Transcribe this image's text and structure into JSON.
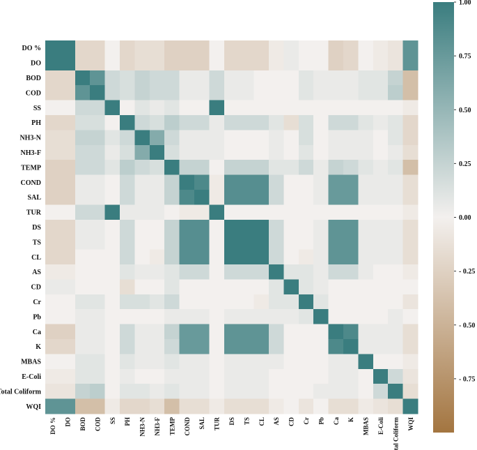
{
  "chart_data": {
    "type": "heatmap",
    "title": "",
    "xlabel": "",
    "ylabel": "",
    "x_labels": [
      "DO %",
      "DO",
      "BOD",
      "COD",
      "SS",
      "PH",
      "NH3-N",
      "NH3-F",
      "TEMP",
      "COND",
      "SAL",
      "TUR",
      "DS",
      "TS",
      "CL",
      "AS",
      "CD",
      "Cr",
      "Pb",
      "Ca",
      "K",
      "MBAS",
      "E-Coli",
      "Total Coliform",
      "WQI"
    ],
    "y_labels": [
      "DO %",
      "DO",
      "BOD",
      "COD",
      "SS",
      "PH",
      "NH3-N",
      "NH3-F",
      "TEMP",
      "COND",
      "SAL",
      "TUR",
      "DS",
      "TS",
      "CL",
      "AS",
      "CD",
      "Cr",
      "Pb",
      "Ca",
      "K",
      "MBAS",
      "E-Coli",
      "Total Coliform",
      "WQI"
    ],
    "matrix": [
      [
        1.0,
        1.0,
        -0.2,
        -0.2,
        0.0,
        -0.2,
        -0.15,
        -0.15,
        -0.25,
        -0.25,
        -0.25,
        0.0,
        -0.2,
        -0.2,
        -0.2,
        -0.05,
        0.05,
        0.0,
        0.0,
        -0.25,
        -0.2,
        0.0,
        -0.05,
        -0.1,
        0.8
      ],
      [
        1.0,
        1.0,
        -0.2,
        -0.2,
        0.0,
        -0.2,
        -0.15,
        -0.15,
        -0.25,
        -0.25,
        -0.25,
        0.0,
        -0.2,
        -0.2,
        -0.2,
        -0.05,
        0.05,
        0.0,
        0.0,
        -0.25,
        -0.2,
        0.0,
        -0.05,
        -0.1,
        0.8
      ],
      [
        -0.2,
        -0.2,
        1.0,
        0.8,
        0.2,
        0.15,
        0.25,
        0.2,
        0.2,
        0.05,
        0.05,
        0.2,
        0.05,
        0.05,
        0.0,
        0.0,
        0.0,
        0.1,
        0.05,
        0.05,
        0.05,
        0.1,
        0.1,
        0.25,
        -0.4
      ],
      [
        -0.2,
        -0.2,
        0.8,
        1.0,
        0.2,
        0.15,
        0.25,
        0.2,
        0.2,
        0.05,
        0.05,
        0.2,
        0.05,
        0.05,
        0.0,
        0.0,
        0.0,
        0.1,
        0.05,
        0.05,
        0.05,
        0.1,
        0.1,
        0.3,
        -0.4
      ],
      [
        0.0,
        0.0,
        0.2,
        0.2,
        1.0,
        0.0,
        0.1,
        0.05,
        0.1,
        0.0,
        0.0,
        1.0,
        0.0,
        0.0,
        0.0,
        0.0,
        0.0,
        0.0,
        0.0,
        0.0,
        0.0,
        0.0,
        0.0,
        0.0,
        -0.05
      ],
      [
        -0.2,
        -0.2,
        0.15,
        0.15,
        0.0,
        1.0,
        0.2,
        0.15,
        0.3,
        0.2,
        0.2,
        0.05,
        0.2,
        0.2,
        0.2,
        0.1,
        -0.15,
        0.15,
        0.0,
        0.2,
        0.2,
        0.1,
        0.05,
        0.1,
        -0.2
      ],
      [
        -0.15,
        -0.15,
        0.25,
        0.25,
        0.1,
        0.2,
        1.0,
        0.6,
        0.2,
        0.05,
        0.05,
        0.05,
        0.0,
        0.0,
        0.0,
        0.05,
        0.0,
        0.15,
        0.0,
        0.05,
        0.05,
        0.05,
        0.0,
        0.1,
        -0.2
      ],
      [
        -0.15,
        -0.15,
        0.2,
        0.2,
        0.05,
        0.15,
        0.6,
        1.0,
        0.15,
        0.05,
        0.05,
        0.05,
        0.0,
        0.0,
        0.0,
        0.05,
        0.0,
        0.1,
        0.0,
        0.05,
        0.05,
        0.05,
        0.0,
        0.05,
        -0.15
      ],
      [
        -0.25,
        -0.25,
        0.2,
        0.2,
        0.1,
        0.3,
        0.2,
        0.15,
        1.0,
        0.25,
        0.25,
        0.0,
        0.25,
        0.25,
        0.25,
        0.1,
        0.1,
        0.2,
        0.05,
        0.25,
        0.2,
        0.1,
        0.05,
        0.1,
        -0.4
      ],
      [
        -0.25,
        -0.25,
        0.05,
        0.05,
        0.0,
        0.2,
        0.05,
        0.05,
        0.25,
        1.0,
        0.9,
        -0.05,
        0.85,
        0.85,
        0.85,
        0.2,
        0.0,
        0.0,
        0.05,
        0.75,
        0.75,
        0.05,
        0.05,
        0.05,
        -0.15
      ],
      [
        -0.25,
        -0.25,
        0.05,
        0.05,
        0.0,
        0.2,
        0.05,
        0.05,
        0.25,
        0.9,
        1.0,
        -0.05,
        0.85,
        0.85,
        0.85,
        0.2,
        0.0,
        0.0,
        0.05,
        0.75,
        0.75,
        0.05,
        0.05,
        0.05,
        -0.15
      ],
      [
        0.0,
        0.0,
        0.2,
        0.2,
        1.0,
        0.05,
        0.05,
        0.05,
        0.0,
        -0.05,
        -0.05,
        1.0,
        0.0,
        0.0,
        0.0,
        0.0,
        0.0,
        0.0,
        0.0,
        0.0,
        0.0,
        0.0,
        0.0,
        0.0,
        -0.05
      ],
      [
        -0.2,
        -0.2,
        0.05,
        0.05,
        0.0,
        0.2,
        0.0,
        0.0,
        0.25,
        0.85,
        0.85,
        0.0,
        1.0,
        1.0,
        1.0,
        0.2,
        0.0,
        0.0,
        0.05,
        0.8,
        0.8,
        0.05,
        0.05,
        0.05,
        -0.15
      ],
      [
        -0.2,
        -0.2,
        0.05,
        0.05,
        0.0,
        0.2,
        0.0,
        0.0,
        0.25,
        0.85,
        0.85,
        0.0,
        1.0,
        1.0,
        1.0,
        0.2,
        0.0,
        0.0,
        0.05,
        0.8,
        0.8,
        0.05,
        0.05,
        0.05,
        -0.15
      ],
      [
        -0.2,
        -0.2,
        0.0,
        0.0,
        0.0,
        0.2,
        0.0,
        -0.05,
        0.25,
        0.85,
        0.85,
        0.0,
        1.0,
        1.0,
        1.0,
        0.2,
        0.0,
        -0.05,
        0.05,
        0.8,
        0.8,
        0.05,
        0.05,
        0.05,
        -0.15
      ],
      [
        -0.05,
        -0.05,
        0.0,
        0.0,
        0.0,
        0.1,
        0.05,
        0.05,
        0.1,
        0.2,
        0.2,
        0.0,
        0.2,
        0.2,
        0.2,
        1.0,
        0.1,
        0.1,
        0.05,
        0.2,
        0.2,
        0.05,
        0.0,
        0.0,
        -0.05
      ],
      [
        0.05,
        0.05,
        0.0,
        0.0,
        0.0,
        -0.15,
        0.0,
        0.0,
        0.1,
        0.0,
        0.0,
        0.0,
        0.0,
        0.0,
        0.0,
        0.1,
        1.0,
        0.1,
        0.05,
        0.0,
        0.0,
        0.0,
        0.0,
        0.0,
        0.0
      ],
      [
        0.0,
        0.0,
        0.1,
        0.1,
        0.0,
        0.15,
        0.15,
        0.1,
        0.2,
        0.0,
        0.0,
        0.0,
        0.0,
        0.0,
        -0.05,
        0.1,
        0.1,
        1.0,
        0.1,
        0.0,
        0.0,
        0.0,
        0.0,
        0.0,
        -0.1
      ],
      [
        0.0,
        0.0,
        0.05,
        0.05,
        0.0,
        0.0,
        0.0,
        0.0,
        0.05,
        0.05,
        0.05,
        0.0,
        0.05,
        0.05,
        0.05,
        0.05,
        0.05,
        0.1,
        1.0,
        0.0,
        0.0,
        0.0,
        0.0,
        0.05,
        0.0
      ],
      [
        -0.25,
        -0.25,
        0.05,
        0.05,
        0.0,
        0.2,
        0.05,
        0.05,
        0.25,
        0.75,
        0.75,
        0.0,
        0.8,
        0.8,
        0.8,
        0.2,
        0.0,
        0.0,
        0.0,
        1.0,
        0.9,
        0.05,
        0.05,
        0.05,
        -0.15
      ],
      [
        -0.2,
        -0.2,
        0.05,
        0.05,
        0.0,
        0.2,
        0.05,
        0.05,
        0.2,
        0.75,
        0.75,
        0.0,
        0.8,
        0.8,
        0.8,
        0.2,
        0.0,
        0.0,
        0.0,
        0.9,
        1.0,
        0.05,
        0.05,
        0.05,
        -0.15
      ],
      [
        0.0,
        0.0,
        0.1,
        0.1,
        0.0,
        0.1,
        0.05,
        0.05,
        0.1,
        0.05,
        0.05,
        0.0,
        0.05,
        0.05,
        0.05,
        0.05,
        0.0,
        0.0,
        0.0,
        0.05,
        0.05,
        1.0,
        0.0,
        0.0,
        -0.05
      ],
      [
        -0.05,
        -0.05,
        0.1,
        0.1,
        0.0,
        0.05,
        0.0,
        0.0,
        0.05,
        0.05,
        0.05,
        0.0,
        0.05,
        0.05,
        0.05,
        0.0,
        0.0,
        0.0,
        0.0,
        0.05,
        0.05,
        0.0,
        1.0,
        0.2,
        -0.1
      ],
      [
        -0.1,
        -0.1,
        0.25,
        0.3,
        0.0,
        0.1,
        0.1,
        0.05,
        0.1,
        0.05,
        0.05,
        0.0,
        0.05,
        0.05,
        0.05,
        0.0,
        0.0,
        0.0,
        0.05,
        0.05,
        0.05,
        0.0,
        0.2,
        1.0,
        -0.15
      ],
      [
        0.8,
        0.8,
        -0.4,
        -0.4,
        -0.05,
        -0.2,
        -0.2,
        -0.15,
        -0.4,
        -0.15,
        -0.15,
        -0.05,
        -0.15,
        -0.15,
        -0.15,
        -0.05,
        0.0,
        -0.1,
        0.0,
        -0.15,
        -0.15,
        -0.05,
        -0.1,
        -0.15,
        1.0
      ]
    ],
    "vmin": -1.0,
    "vmax": 1.0,
    "colorbar": {
      "ticks": [
        1.0,
        0.75,
        0.5,
        0.25,
        0.0,
        -0.25,
        -0.5,
        -0.75
      ],
      "tick_labels": [
        "1.00",
        "0.75",
        "0.50",
        "0.25",
        "0.00",
        "- 0.25",
        "- 0.50",
        "- 0.75"
      ]
    },
    "colors": {
      "negative": "#a37540",
      "neutral": "#f3f0ee",
      "positive": "#3a7d7f"
    },
    "grid": false,
    "legend": "right colorbar"
  }
}
